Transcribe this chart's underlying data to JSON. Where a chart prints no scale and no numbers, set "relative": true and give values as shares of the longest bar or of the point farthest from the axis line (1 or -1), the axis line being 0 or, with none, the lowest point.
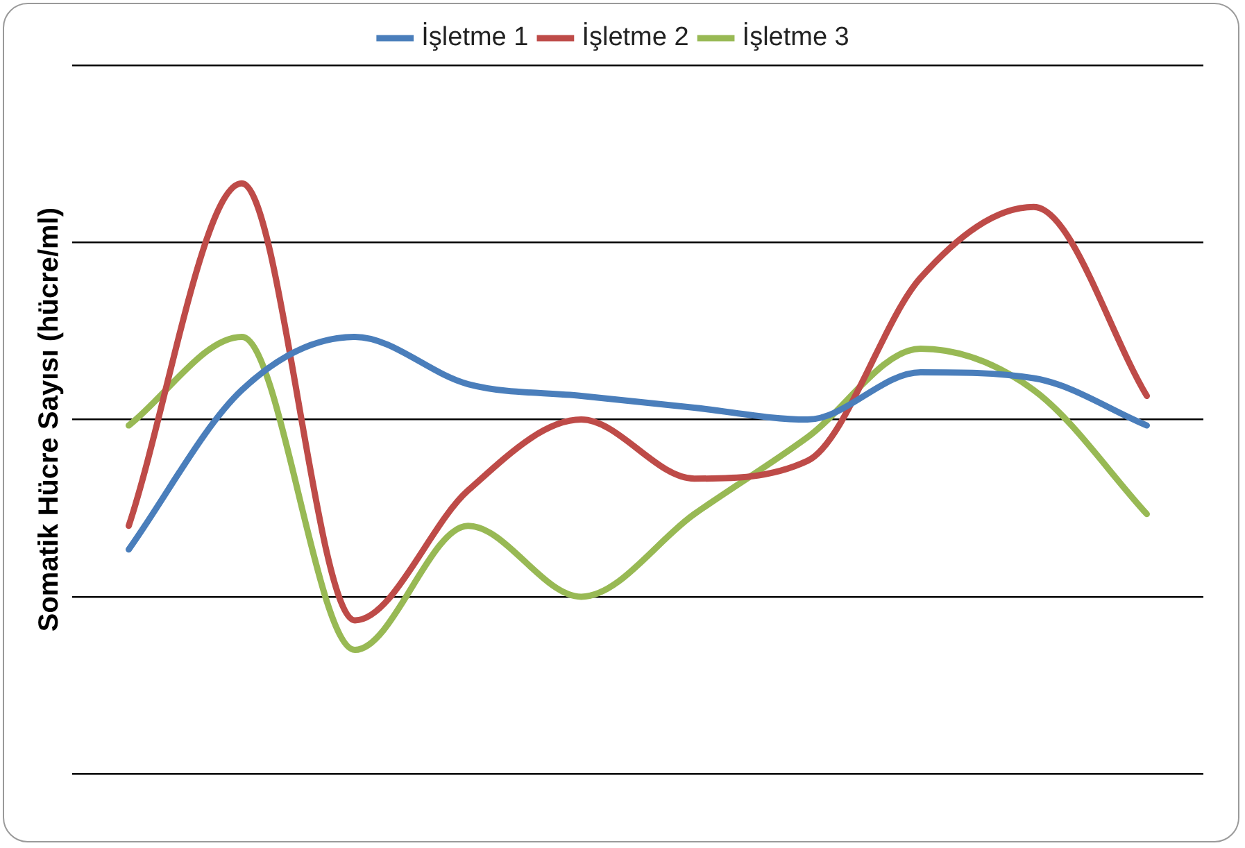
{
  "chart_data": {
    "type": "line",
    "ylabel": "Somatik Hücre Sayısı (hücre/ml)",
    "relative": true,
    "grid": "y",
    "legend": "top",
    "marker": "none",
    "line_style": "solid",
    "categories": [
      null,
      null,
      null,
      null,
      null,
      null,
      null,
      null,
      null,
      null
    ],
    "series": [
      {
        "name": "İşletme 1",
        "color": "#4a7ebb",
        "values": [
          0.38,
          0.65,
          0.74,
          0.66,
          0.64,
          0.62,
          0.6,
          0.68,
          0.67,
          0.59
        ]
      },
      {
        "name": "İşletme 2",
        "color": "#be4b48",
        "values": [
          0.42,
          1.0,
          0.26,
          0.48,
          0.6,
          0.5,
          0.53,
          0.84,
          0.96,
          0.64
        ]
      },
      {
        "name": "İşletme 3",
        "color": "#98b954",
        "values": [
          0.59,
          0.74,
          0.21,
          0.42,
          0.3,
          0.44,
          0.57,
          0.72,
          0.65,
          0.44
        ]
      }
    ]
  }
}
